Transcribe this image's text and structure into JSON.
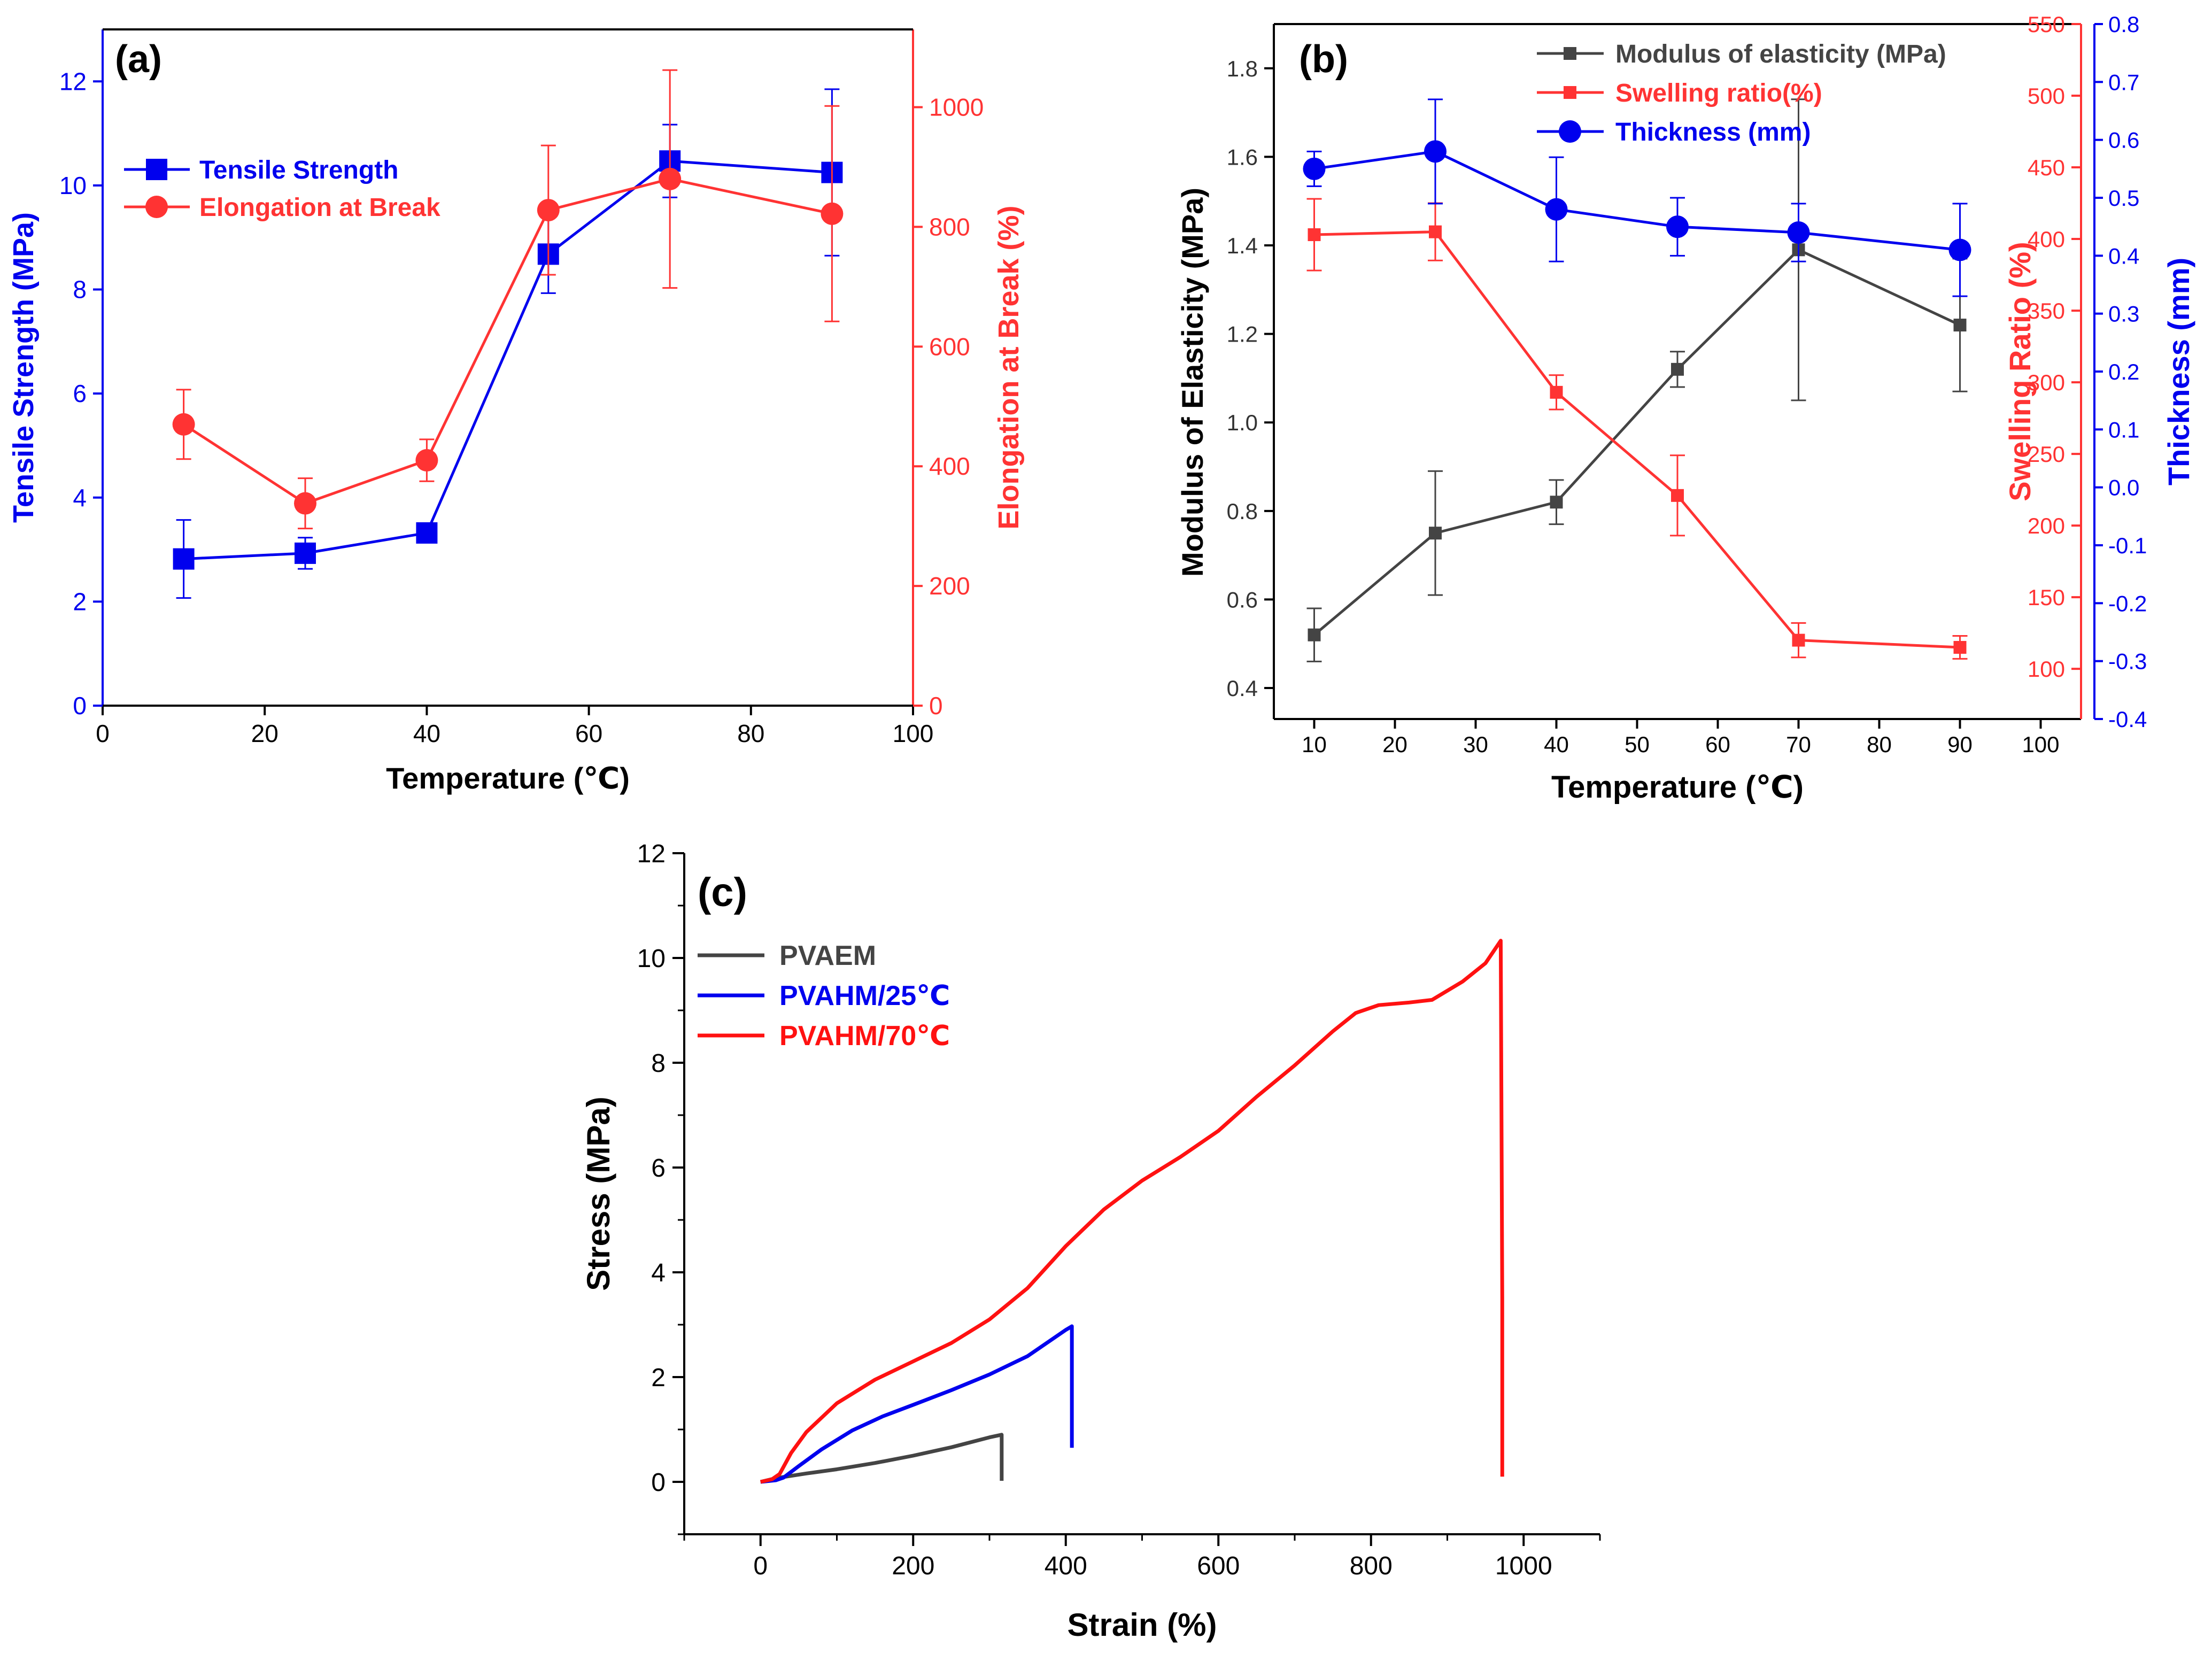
{
  "figure": {
    "label_note": "Three-panel mechanical properties figure"
  },
  "chart_data": [
    {
      "id": "a",
      "type": "line",
      "panel_label": "(a)",
      "xlabel": "Temperature (℃)",
      "ylabel_left": "Tensile Strength (MPa)",
      "ylabel_right": "Elongation at Break (%)",
      "xlim": [
        0,
        100
      ],
      "ylim_left": [
        0,
        13
      ],
      "ylim_right": [
        0,
        1130
      ],
      "x_ticks": [
        "0",
        "20",
        "40",
        "60",
        "80",
        "100"
      ],
      "y_ticks_left": [
        "0",
        "2",
        "4",
        "6",
        "8",
        "10",
        "12"
      ],
      "y_ticks_right": [
        "0",
        "200",
        "400",
        "600",
        "800",
        "1000"
      ],
      "colors": {
        "left": "#0000ee",
        "right": "#ff3333",
        "axis": "#000000"
      },
      "series": [
        {
          "name": "Tensile Strength",
          "axis": "left",
          "marker": "square",
          "color": "#0000ee",
          "x": [
            10,
            25,
            40,
            55,
            70,
            90
          ],
          "y": [
            2.82,
            2.93,
            3.32,
            8.68,
            10.47,
            10.25
          ],
          "err": [
            0.75,
            0.3,
            0.1,
            0.75,
            0.7,
            1.6
          ]
        },
        {
          "name": "Elongation at Break",
          "axis": "right",
          "marker": "circle",
          "color": "#ff3333",
          "x": [
            10,
            25,
            40,
            55,
            70,
            90
          ],
          "y": [
            470,
            338,
            410,
            828,
            880,
            822
          ],
          "err": [
            58,
            42,
            35,
            108,
            182,
            180
          ]
        }
      ]
    },
    {
      "id": "b",
      "type": "line",
      "panel_label": "(b)",
      "xlabel": "Temperature (℃)",
      "ylabel_left": "Modulus of Elasticity (MPa)",
      "ylabel_right1": "Swelling Ratio (%)",
      "ylabel_right2": "Thickness (mm)",
      "xlim": [
        5,
        105
      ],
      "ylim_left": [
        0.33,
        1.9
      ],
      "ylim_right1": [
        65,
        550
      ],
      "ylim_right2": [
        -0.4,
        0.8
      ],
      "x_ticks": [
        "10",
        "20",
        "30",
        "40",
        "50",
        "60",
        "70",
        "80",
        "90",
        "100"
      ],
      "y_ticks_left": [
        "0.4",
        "0.6",
        "0.8",
        "1.0",
        "1.2",
        "1.4",
        "1.6",
        "1.8"
      ],
      "y_ticks_right1": [
        "100",
        "150",
        "200",
        "250",
        "300",
        "350",
        "400",
        "450",
        "500",
        "550"
      ],
      "y_ticks_right2": [
        "-0.4",
        "-0.3",
        "-0.2",
        "-0.1",
        "0.0",
        "0.1",
        "0.2",
        "0.3",
        "0.4",
        "0.5",
        "0.6",
        "0.7",
        "0.8"
      ],
      "colors": {
        "left": "#333333",
        "right1": "#ff3333",
        "right2": "#0000ee"
      },
      "series": [
        {
          "name": "Modulus of elasticity (MPa)",
          "axis": "left",
          "marker": "square-small",
          "color": "#444444",
          "x": [
            10,
            25,
            40,
            55,
            70,
            90
          ],
          "y": [
            0.52,
            0.75,
            0.82,
            1.12,
            1.39,
            1.22
          ],
          "err": [
            0.06,
            0.14,
            0.05,
            0.04,
            0.34,
            0.15
          ]
        },
        {
          "name": "Swelling ratio(%)",
          "axis": "right1",
          "marker": "square-small",
          "color": "#ff3333",
          "x": [
            10,
            25,
            40,
            55,
            70,
            90
          ],
          "y": [
            403,
            405,
            293,
            221,
            120,
            115
          ],
          "err": [
            25,
            20,
            12,
            28,
            12,
            8
          ]
        },
        {
          "name": "Thickness (mm)",
          "axis": "right2",
          "marker": "circle",
          "color": "#0000ee",
          "x": [
            10,
            25,
            40,
            55,
            70,
            90
          ],
          "y": [
            0.55,
            0.58,
            0.48,
            0.45,
            0.44,
            0.41
          ],
          "err": [
            0.03,
            0.09,
            0.09,
            0.05,
            0.05,
            0.08
          ]
        }
      ]
    },
    {
      "id": "c",
      "type": "line",
      "panel_label": "(c)",
      "xlabel": "Strain (%)",
      "ylabel": "Stress (MPa)",
      "xlim": [
        -100,
        1100
      ],
      "ylim": [
        -1,
        12
      ],
      "x_ticks": [
        "0",
        "200",
        "400",
        "600",
        "800",
        "1000"
      ],
      "y_ticks": [
        "0",
        "2",
        "4",
        "6",
        "8",
        "10",
        "12"
      ],
      "series": [
        {
          "name": "PVAEM",
          "color": "#444444",
          "x": [
            0,
            20,
            60,
            100,
            150,
            200,
            250,
            300,
            316,
            316
          ],
          "y": [
            0,
            0.07,
            0.16,
            0.24,
            0.36,
            0.5,
            0.66,
            0.85,
            0.9,
            0.02
          ]
        },
        {
          "name": "PVAHM/25℃",
          "color": "#0000ee",
          "x": [
            0,
            20,
            30,
            50,
            80,
            120,
            160,
            200,
            250,
            300,
            350,
            400,
            408,
            408
          ],
          "y": [
            0,
            0.03,
            0.08,
            0.3,
            0.62,
            0.98,
            1.25,
            1.47,
            1.75,
            2.05,
            2.4,
            2.9,
            2.97,
            0.65
          ]
        },
        {
          "name": "PVAHM/70℃",
          "color": "#ff1111",
          "x": [
            0,
            15,
            25,
            40,
            60,
            100,
            150,
            200,
            250,
            300,
            350,
            400,
            450,
            500,
            550,
            600,
            650,
            700,
            750,
            780,
            810,
            850,
            880,
            920,
            950,
            970,
            972,
            972
          ],
          "y": [
            0,
            0.05,
            0.15,
            0.55,
            0.95,
            1.5,
            1.95,
            2.3,
            2.65,
            3.1,
            3.7,
            4.5,
            5.2,
            5.75,
            6.2,
            6.7,
            7.35,
            7.95,
            8.6,
            8.95,
            9.1,
            9.15,
            9.2,
            9.55,
            9.9,
            10.33,
            3.5,
            0.1
          ]
        }
      ]
    }
  ]
}
